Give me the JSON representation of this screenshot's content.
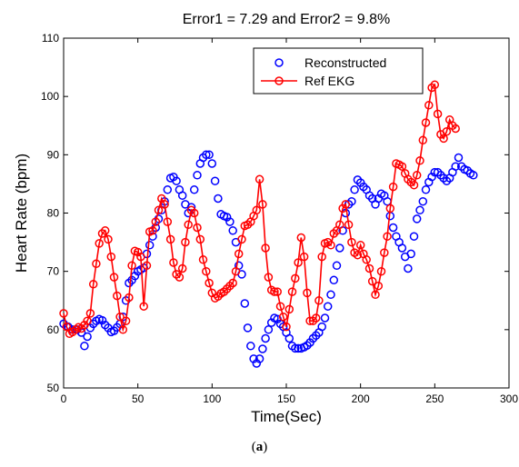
{
  "chart_data": {
    "type": "line",
    "title": "Error1 = 7.29 and Error2 = 9.8%",
    "xlabel": "Time(Sec)",
    "ylabel": "Heart Rate (bpm)",
    "xlim": [
      0,
      300
    ],
    "ylim": [
      50,
      110
    ],
    "xticks": [
      0,
      50,
      100,
      150,
      200,
      250,
      300
    ],
    "yticks": [
      50,
      60,
      70,
      80,
      90,
      100,
      110
    ],
    "grid": false,
    "legend_position": "top-right",
    "series": [
      {
        "name": "Reconstructed",
        "marker": "circle",
        "line": false,
        "color": "#0000ff",
        "points": [
          [
            0,
            61
          ],
          [
            3,
            60.5
          ],
          [
            6,
            60
          ],
          [
            9,
            60
          ],
          [
            12,
            59.5
          ],
          [
            14,
            57.2
          ],
          [
            16,
            58.8
          ],
          [
            18,
            60.3
          ],
          [
            20,
            61
          ],
          [
            22,
            61.5
          ],
          [
            24,
            61.8
          ],
          [
            26,
            61.6
          ],
          [
            28,
            60.8
          ],
          [
            30,
            60.3
          ],
          [
            32,
            59.6
          ],
          [
            34,
            59.8
          ],
          [
            36,
            60.4
          ],
          [
            38,
            61
          ],
          [
            40,
            62.2
          ],
          [
            42,
            65
          ],
          [
            44,
            68
          ],
          [
            46,
            68.5
          ],
          [
            48,
            69.2
          ],
          [
            50,
            70
          ],
          [
            52,
            70.3
          ],
          [
            54,
            70.6
          ],
          [
            56,
            73
          ],
          [
            58,
            74.5
          ],
          [
            60,
            76
          ],
          [
            62,
            77.5
          ],
          [
            64,
            79
          ],
          [
            66,
            80.5
          ],
          [
            68,
            82
          ],
          [
            70,
            84
          ],
          [
            72,
            86
          ],
          [
            74,
            86.2
          ],
          [
            76,
            85.5
          ],
          [
            78,
            84
          ],
          [
            80,
            83
          ],
          [
            82,
            81.5
          ],
          [
            84,
            80
          ],
          [
            86,
            81
          ],
          [
            88,
            84
          ],
          [
            90,
            86.5
          ],
          [
            92,
            88.5
          ],
          [
            94,
            89.5
          ],
          [
            96,
            90
          ],
          [
            98,
            90
          ],
          [
            100,
            88.5
          ],
          [
            102,
            85.5
          ],
          [
            104,
            82.5
          ],
          [
            106,
            79.8
          ],
          [
            108,
            79.5
          ],
          [
            110,
            79.3
          ],
          [
            112,
            78.5
          ],
          [
            114,
            77
          ],
          [
            116,
            75
          ],
          [
            118,
            71
          ],
          [
            120,
            69.5
          ],
          [
            122,
            64.5
          ],
          [
            124,
            60.3
          ],
          [
            126,
            57.2
          ],
          [
            128,
            55
          ],
          [
            130,
            54.2
          ],
          [
            132,
            55
          ],
          [
            134,
            56.7
          ],
          [
            136,
            58.5
          ],
          [
            138,
            60
          ],
          [
            140,
            61.2
          ],
          [
            142,
            62
          ],
          [
            144,
            61.8
          ],
          [
            146,
            61
          ],
          [
            148,
            60.5
          ],
          [
            150,
            59.5
          ],
          [
            152,
            58.5
          ],
          [
            154,
            57.2
          ],
          [
            156,
            56.8
          ],
          [
            158,
            56.8
          ],
          [
            160,
            56.8
          ],
          [
            162,
            57
          ],
          [
            164,
            57.3
          ],
          [
            166,
            57.8
          ],
          [
            168,
            58.5
          ],
          [
            170,
            59
          ],
          [
            172,
            59.5
          ],
          [
            174,
            60.5
          ],
          [
            176,
            62
          ],
          [
            178,
            64
          ],
          [
            180,
            66
          ],
          [
            182,
            68.5
          ],
          [
            184,
            71
          ],
          [
            186,
            74
          ],
          [
            188,
            77
          ],
          [
            190,
            80
          ],
          [
            192,
            81.5
          ],
          [
            194,
            82
          ],
          [
            196,
            84
          ],
          [
            198,
            85.7
          ],
          [
            200,
            85.2
          ],
          [
            202,
            84.5
          ],
          [
            204,
            84
          ],
          [
            206,
            83
          ],
          [
            208,
            82.5
          ],
          [
            210,
            81.5
          ],
          [
            212,
            82.5
          ],
          [
            214,
            83.3
          ],
          [
            216,
            83
          ],
          [
            218,
            82
          ],
          [
            220,
            79.5
          ],
          [
            222,
            77.5
          ],
          [
            224,
            76
          ],
          [
            226,
            75
          ],
          [
            228,
            74
          ],
          [
            230,
            72.5
          ],
          [
            232,
            70.5
          ],
          [
            234,
            73
          ],
          [
            236,
            76
          ],
          [
            238,
            79
          ],
          [
            240,
            80.5
          ],
          [
            242,
            82
          ],
          [
            244,
            84
          ],
          [
            246,
            85.3
          ],
          [
            248,
            86.2
          ],
          [
            250,
            87
          ],
          [
            252,
            87
          ],
          [
            254,
            86.5
          ],
          [
            256,
            86
          ],
          [
            258,
            85.5
          ],
          [
            260,
            86
          ],
          [
            262,
            87
          ],
          [
            264,
            88
          ],
          [
            266,
            89.5
          ],
          [
            268,
            88
          ],
          [
            270,
            87.5
          ],
          [
            272,
            87.3
          ],
          [
            274,
            86.8
          ],
          [
            276,
            86.5
          ]
        ]
      },
      {
        "name": "Ref EKG",
        "marker": "circle",
        "line": true,
        "color": "#ff0000",
        "points": [
          [
            0,
            62.8
          ],
          [
            2,
            60.5
          ],
          [
            4,
            59.3
          ],
          [
            6,
            59.6
          ],
          [
            8,
            60
          ],
          [
            10,
            60.4
          ],
          [
            12,
            60.2
          ],
          [
            14,
            60.8
          ],
          [
            16,
            61.5
          ],
          [
            18,
            62.8
          ],
          [
            20,
            67.8
          ],
          [
            22,
            71.3
          ],
          [
            24,
            74.8
          ],
          [
            26,
            76.5
          ],
          [
            28,
            77
          ],
          [
            30,
            75.5
          ],
          [
            32,
            72.5
          ],
          [
            34,
            69
          ],
          [
            36,
            65.8
          ],
          [
            38,
            62.2
          ],
          [
            40,
            60
          ],
          [
            42,
            61.5
          ],
          [
            44,
            65.5
          ],
          [
            46,
            71
          ],
          [
            48,
            73.5
          ],
          [
            50,
            73.3
          ],
          [
            52,
            72.5
          ],
          [
            54,
            64
          ],
          [
            56,
            71
          ],
          [
            58,
            76.8
          ],
          [
            60,
            77
          ],
          [
            62,
            78.5
          ],
          [
            64,
            80.5
          ],
          [
            66,
            82.5
          ],
          [
            68,
            81.5
          ],
          [
            70,
            78.5
          ],
          [
            72,
            75.5
          ],
          [
            74,
            71.5
          ],
          [
            76,
            69.5
          ],
          [
            78,
            69
          ],
          [
            80,
            70.5
          ],
          [
            82,
            75
          ],
          [
            84,
            78
          ],
          [
            86,
            80.5
          ],
          [
            88,
            80
          ],
          [
            90,
            77.5
          ],
          [
            92,
            75.5
          ],
          [
            94,
            72
          ],
          [
            96,
            70
          ],
          [
            98,
            68
          ],
          [
            100,
            66.3
          ],
          [
            102,
            65.4
          ],
          [
            104,
            65.7
          ],
          [
            106,
            66.2
          ],
          [
            108,
            66.5
          ],
          [
            110,
            67
          ],
          [
            112,
            67.5
          ],
          [
            114,
            68
          ],
          [
            116,
            70
          ],
          [
            118,
            73
          ],
          [
            120,
            75.5
          ],
          [
            122,
            77.8
          ],
          [
            124,
            78
          ],
          [
            126,
            78.5
          ],
          [
            128,
            79.5
          ],
          [
            130,
            80.5
          ],
          [
            132,
            85.8
          ],
          [
            134,
            81.5
          ],
          [
            136,
            74
          ],
          [
            138,
            69
          ],
          [
            140,
            66.8
          ],
          [
            142,
            66.5
          ],
          [
            144,
            66.5
          ],
          [
            146,
            64
          ],
          [
            148,
            62.2
          ],
          [
            150,
            60.5
          ],
          [
            152,
            63.5
          ],
          [
            154,
            66.5
          ],
          [
            156,
            68.8
          ],
          [
            158,
            71.5
          ],
          [
            160,
            75.8
          ],
          [
            162,
            72.5
          ],
          [
            164,
            66.3
          ],
          [
            166,
            61.5
          ],
          [
            168,
            61.5
          ],
          [
            170,
            62
          ],
          [
            172,
            65
          ],
          [
            174,
            72.5
          ],
          [
            176,
            74.8
          ],
          [
            178,
            75
          ],
          [
            180,
            74.5
          ],
          [
            182,
            76.5
          ],
          [
            184,
            77
          ],
          [
            186,
            78
          ],
          [
            188,
            80.8
          ],
          [
            190,
            81.5
          ],
          [
            192,
            78
          ],
          [
            194,
            75
          ],
          [
            196,
            73.2
          ],
          [
            198,
            72.8
          ],
          [
            200,
            74.5
          ],
          [
            202,
            73
          ],
          [
            204,
            72
          ],
          [
            206,
            70.5
          ],
          [
            208,
            68.3
          ],
          [
            210,
            66
          ],
          [
            212,
            67.5
          ],
          [
            214,
            70
          ],
          [
            216,
            73.2
          ],
          [
            218,
            76
          ],
          [
            220,
            80.8
          ],
          [
            222,
            84.5
          ],
          [
            224,
            88.5
          ],
          [
            226,
            88.3
          ],
          [
            228,
            88
          ],
          [
            230,
            86.8
          ],
          [
            232,
            85.8
          ],
          [
            234,
            85.3
          ],
          [
            236,
            84.8
          ],
          [
            238,
            86.5
          ],
          [
            240,
            89
          ],
          [
            242,
            92.5
          ],
          [
            244,
            95.5
          ],
          [
            246,
            98.5
          ],
          [
            248,
            101.5
          ],
          [
            250,
            102
          ],
          [
            252,
            97
          ],
          [
            254,
            93.5
          ],
          [
            256,
            92.8
          ],
          [
            258,
            94
          ],
          [
            260,
            96
          ],
          [
            262,
            95
          ],
          [
            264,
            94.5
          ]
        ]
      }
    ]
  },
  "caption": {
    "text": "a"
  }
}
